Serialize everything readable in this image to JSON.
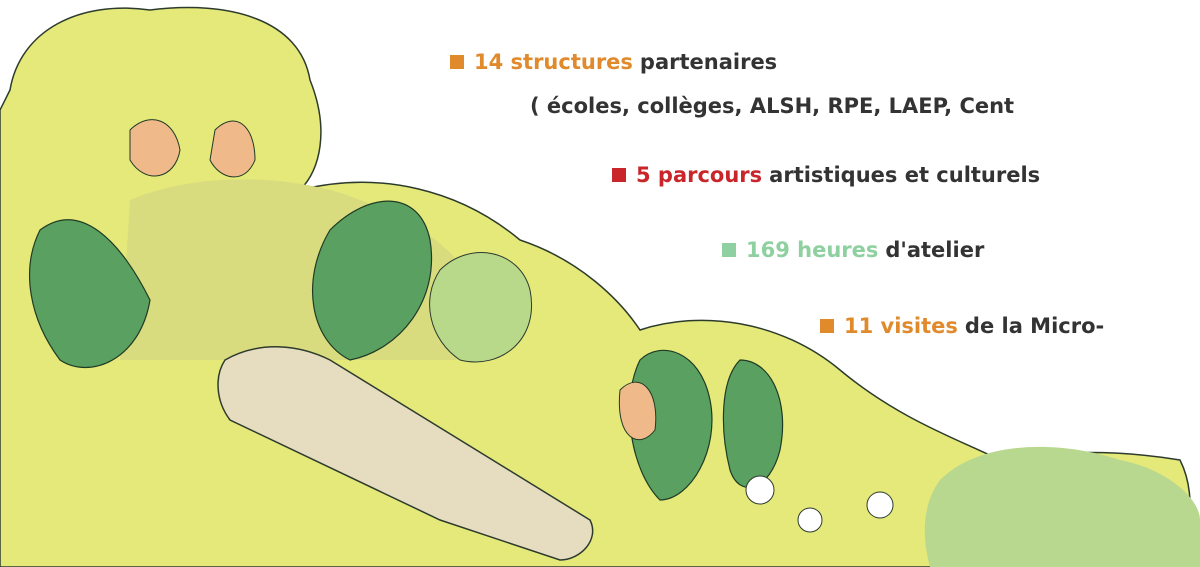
{
  "items": [
    {
      "highlight": "14 structures",
      "text": "partenaires",
      "color": "#e08a2c",
      "detail": "( écoles, collèges, ALSH, RPE, LAEP, Cent"
    },
    {
      "highlight": "5 parcours",
      "text": "artistiques et culturels",
      "color": "#c8262a"
    },
    {
      "highlight": "169 heures",
      "text": "d'atelier",
      "color": "#8fd0a0"
    },
    {
      "highlight": "11 visites",
      "text": "de la Micro-",
      "color": "#e08a2c"
    }
  ]
}
